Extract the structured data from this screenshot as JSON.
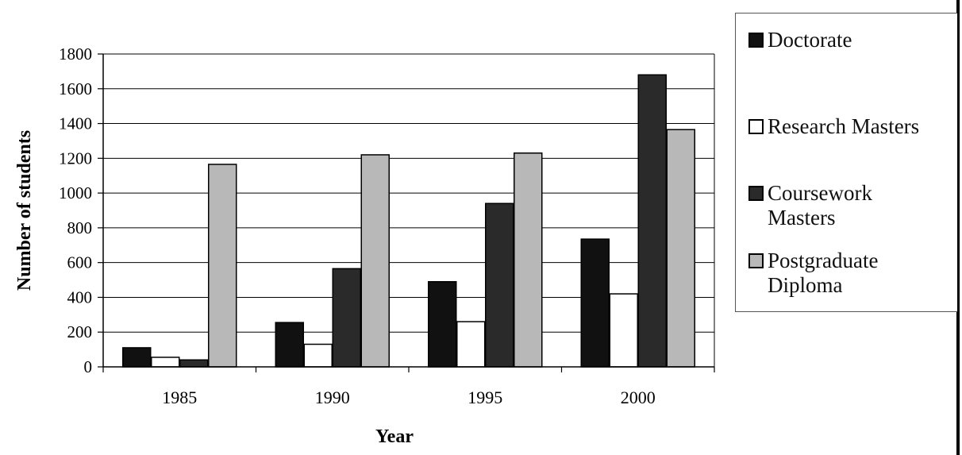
{
  "chart_data": {
    "type": "bar",
    "categories": [
      "1985",
      "1990",
      "1995",
      "2000"
    ],
    "series": [
      {
        "name": "Doctorate",
        "values": [
          110,
          255,
          490,
          735
        ],
        "color": "#111111"
      },
      {
        "name": "Research Masters",
        "values": [
          55,
          130,
          260,
          420
        ],
        "color": "#ffffff"
      },
      {
        "name": "Coursework Masters",
        "values": [
          40,
          565,
          940,
          1680
        ],
        "color": "#2a2a2a"
      },
      {
        "name": "Postgraduate Diploma",
        "values": [
          1165,
          1220,
          1230,
          1365
        ],
        "color": "#b8b8b8"
      }
    ],
    "xlabel": "Year",
    "ylabel": "Number of students",
    "ylim": [
      0,
      1800
    ],
    "yticks": [
      "0",
      "200",
      "400",
      "600",
      "800",
      "1000",
      "1200",
      "1400",
      "1600",
      "1800"
    ],
    "grid": true,
    "legend_position": "right"
  }
}
